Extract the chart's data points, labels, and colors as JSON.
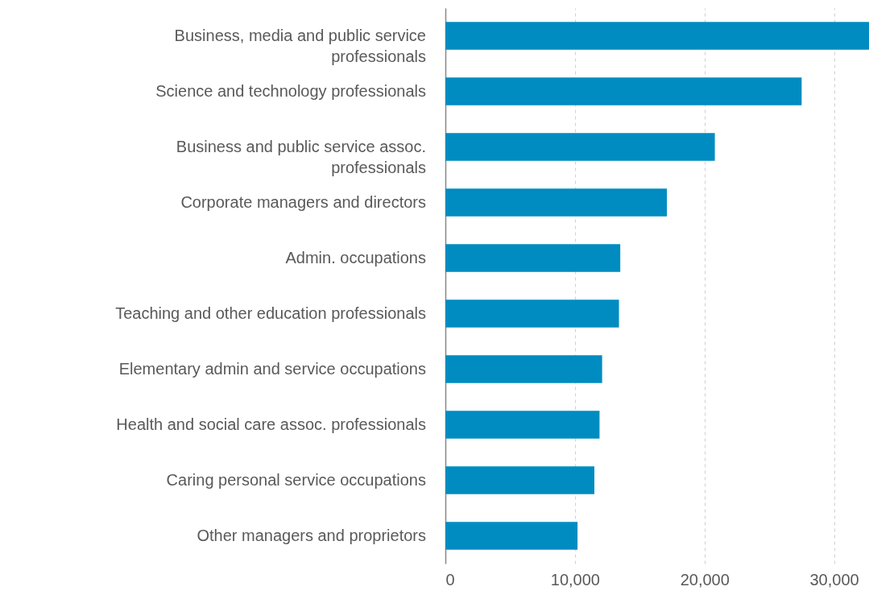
{
  "chart_data": {
    "type": "bar",
    "orientation": "horizontal",
    "categories": [
      "Business, media and public service professionals",
      "Science and technology professionals",
      "Business and public service assoc. professionals",
      "Corporate managers and directors",
      "Admin. occupations",
      "Teaching and other education professionals",
      "Elementary admin and service occupations",
      "Health and social care assoc. professionals",
      "Caring personal service occupations",
      "Other managers and proprietors"
    ],
    "values": [
      32700,
      27500,
      20800,
      17100,
      13500,
      13400,
      12100,
      11900,
      11500,
      10200
    ],
    "color": "#008cc1",
    "xlim": [
      0,
      32700
    ],
    "xticks": [
      {
        "value": 0,
        "label": "0"
      },
      {
        "value": 10000,
        "label": "10,000"
      },
      {
        "value": 20000,
        "label": "20,000"
      },
      {
        "value": 30000,
        "label": "30,000"
      }
    ],
    "grid": "x"
  }
}
